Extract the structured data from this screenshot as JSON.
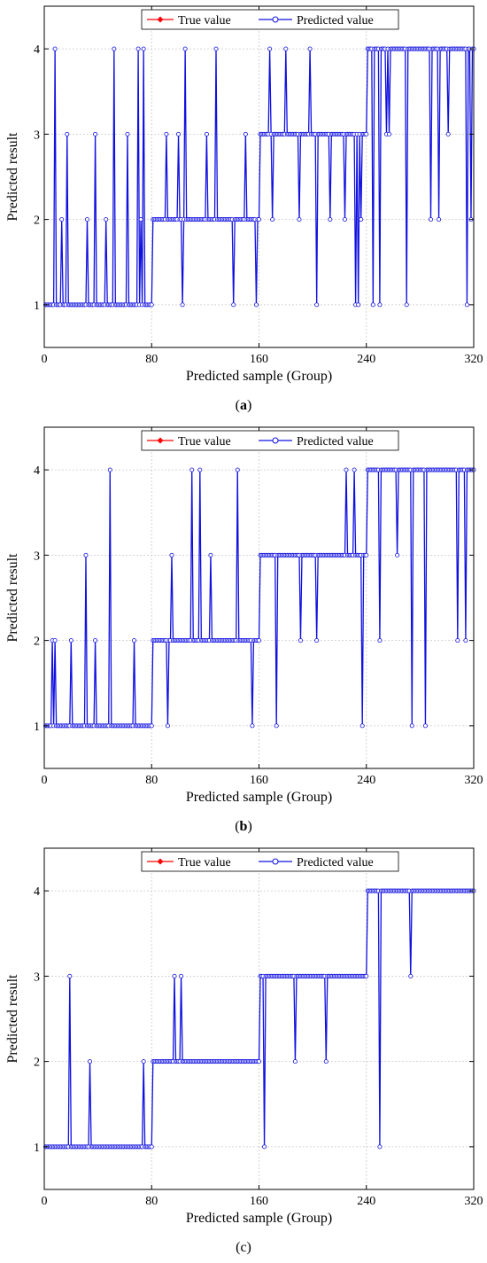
{
  "colors": {
    "true_value": "#ff0000",
    "predicted_value": "#1010e0",
    "marker_fill": "#ffffff",
    "grid": "#c8c8c8",
    "axis": "#000000"
  },
  "panels": [
    {
      "letter": "a",
      "letter_bold": true,
      "chart_data": {
        "type": "line",
        "xlabel": "Predicted sample (Group)",
        "ylabel": "Predicted result",
        "xlim": [
          0,
          320
        ],
        "ylim": [
          0.5,
          4.5
        ],
        "xticks": [
          0,
          80,
          160,
          240,
          320
        ],
        "yticks": [
          1,
          2,
          3,
          4
        ],
        "grid": true,
        "legend": "top-center",
        "series": [
          {
            "name": "True value",
            "marker": "filled-diamond",
            "steps": [
              {
                "x0": 1,
                "x1": 80,
                "y": 1
              },
              {
                "x0": 81,
                "x1": 160,
                "y": 2
              },
              {
                "x0": 161,
                "x1": 240,
                "y": 3
              },
              {
                "x0": 241,
                "x1": 320,
                "y": 4
              }
            ]
          },
          {
            "name": "Predicted value",
            "marker": "open-circle",
            "outliers": [
              [
                8,
                4
              ],
              [
                13,
                2
              ],
              [
                17,
                3
              ],
              [
                32,
                2
              ],
              [
                38,
                3
              ],
              [
                46,
                2
              ],
              [
                52,
                4
              ],
              [
                62,
                3
              ],
              [
                70,
                4
              ],
              [
                72,
                2
              ],
              [
                74,
                4
              ],
              [
                103,
                1
              ],
              [
                105,
                4
              ],
              [
                91,
                3
              ],
              [
                100,
                3
              ],
              [
                121,
                3
              ],
              [
                128,
                4
              ],
              [
                141,
                1
              ],
              [
                150,
                3
              ],
              [
                158,
                1
              ],
              [
                168,
                4
              ],
              [
                170,
                2
              ],
              [
                180,
                4
              ],
              [
                190,
                2
              ],
              [
                198,
                4
              ],
              [
                203,
                1
              ],
              [
                213,
                2
              ],
              [
                224,
                2
              ],
              [
                232,
                1
              ],
              [
                234,
                1
              ],
              [
                236,
                2
              ],
              [
                245,
                1
              ],
              [
                250,
                1
              ],
              [
                255,
                3
              ],
              [
                257,
                3
              ],
              [
                270,
                1
              ],
              [
                288,
                2
              ],
              [
                294,
                2
              ],
              [
                301,
                3
              ],
              [
                315,
                1
              ],
              [
                318,
                2
              ]
            ]
          }
        ]
      }
    },
    {
      "letter": "b",
      "letter_bold": true,
      "chart_data": {
        "type": "line",
        "xlabel": "Predicted sample (Group)",
        "ylabel": "Predicted result",
        "xlim": [
          0,
          320
        ],
        "ylim": [
          0.5,
          4.5
        ],
        "xticks": [
          0,
          80,
          160,
          240,
          320
        ],
        "yticks": [
          1,
          2,
          3,
          4
        ],
        "grid": true,
        "legend": "top-center",
        "series": [
          {
            "name": "True value",
            "marker": "filled-diamond",
            "steps": [
              {
                "x0": 1,
                "x1": 80,
                "y": 1
              },
              {
                "x0": 81,
                "x1": 160,
                "y": 2
              },
              {
                "x0": 161,
                "x1": 240,
                "y": 3
              },
              {
                "x0": 241,
                "x1": 320,
                "y": 4
              }
            ]
          },
          {
            "name": "Predicted value",
            "marker": "open-circle",
            "outliers": [
              [
                6,
                2
              ],
              [
                8,
                2
              ],
              [
                20,
                2
              ],
              [
                31,
                3
              ],
              [
                38,
                2
              ],
              [
                49,
                4
              ],
              [
                67,
                2
              ],
              [
                92,
                1
              ],
              [
                95,
                3
              ],
              [
                110,
                4
              ],
              [
                116,
                4
              ],
              [
                124,
                3
              ],
              [
                144,
                4
              ],
              [
                155,
                1
              ],
              [
                173,
                1
              ],
              [
                191,
                2
              ],
              [
                203,
                2
              ],
              [
                225,
                4
              ],
              [
                231,
                4
              ],
              [
                237,
                1
              ],
              [
                250,
                2
              ],
              [
                263,
                3
              ],
              [
                274,
                1
              ],
              [
                284,
                1
              ],
              [
                308,
                2
              ],
              [
                314,
                2
              ]
            ]
          }
        ]
      }
    },
    {
      "letter": "c",
      "letter_bold": false,
      "chart_data": {
        "type": "line",
        "xlabel": "Predicted sample (Group)",
        "ylabel": "Predicted result",
        "xlim": [
          0,
          320
        ],
        "ylim": [
          0.5,
          4.5
        ],
        "xticks": [
          0,
          80,
          160,
          240,
          320
        ],
        "yticks": [
          1,
          2,
          3,
          4
        ],
        "grid": true,
        "legend": "top-center",
        "series": [
          {
            "name": "True value",
            "marker": "filled-diamond",
            "steps": [
              {
                "x0": 1,
                "x1": 80,
                "y": 1
              },
              {
                "x0": 81,
                "x1": 160,
                "y": 2
              },
              {
                "x0": 161,
                "x1": 240,
                "y": 3
              },
              {
                "x0": 241,
                "x1": 320,
                "y": 4
              }
            ]
          },
          {
            "name": "Predicted value",
            "marker": "open-circle",
            "outliers": [
              [
                19,
                3
              ],
              [
                34,
                2
              ],
              [
                74,
                2
              ],
              [
                97,
                3
              ],
              [
                102,
                3
              ],
              [
                164,
                1
              ],
              [
                187,
                2
              ],
              [
                210,
                2
              ],
              [
                250,
                1
              ],
              [
                273,
                3
              ]
            ]
          }
        ]
      }
    }
  ]
}
